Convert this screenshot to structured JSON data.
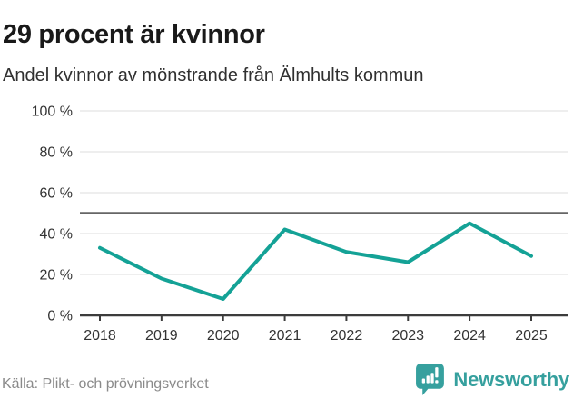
{
  "chart_data": {
    "type": "line",
    "title": "29 procent är kvinnor",
    "subtitle": "Andel kvinnor av mönstrande från Älmhults kommun",
    "source": "Källa: Plikt- och prövningsverket",
    "categories": [
      "2018",
      "2019",
      "2020",
      "2021",
      "2022",
      "2023",
      "2024",
      "2025"
    ],
    "series": [
      {
        "name": "Andel kvinnor av mönstrande",
        "values": [
          33,
          18,
          8,
          42,
          31,
          26,
          45,
          29
        ],
        "color": "#14a296"
      }
    ],
    "unit": "%",
    "xlabel": "",
    "ylabel": "",
    "ylim": [
      0,
      100
    ],
    "yticks": [
      {
        "value": 0,
        "label": "0 %"
      },
      {
        "value": 20,
        "label": "20 %"
      },
      {
        "value": 40,
        "label": "40 %"
      },
      {
        "value": 60,
        "label": "60 %"
      },
      {
        "value": 80,
        "label": "80 %"
      },
      {
        "value": 100,
        "label": "100 %"
      }
    ],
    "reference_line": {
      "value": 50,
      "color": "#666666"
    },
    "grid": true,
    "grid_color": "#e4e4e4",
    "axis_color": "#3c3c3c",
    "tick_label_color": "#333333",
    "legend": "none"
  },
  "brand": {
    "name": "Newsworthy",
    "accent": "#36a09e",
    "logo_icon": "bar-chart-exclamation-badge"
  }
}
